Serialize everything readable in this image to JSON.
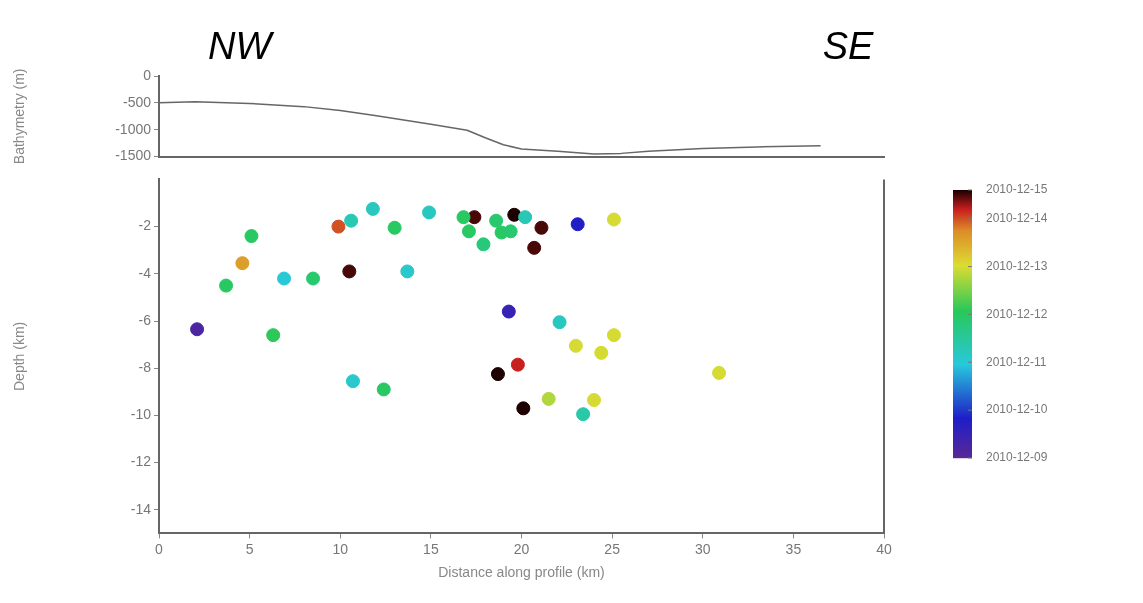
{
  "chart_data": [
    {
      "type": "line",
      "ylabel": "Bathymetry (m)",
      "annotations": [
        "NW",
        "SE"
      ],
      "x": [
        0,
        2,
        5,
        8,
        10,
        12,
        15,
        17,
        18,
        19,
        20,
        22,
        24,
        25.5,
        27,
        30,
        33,
        36.5
      ],
      "values": [
        -500,
        -480,
        -510,
        -570,
        -640,
        -740,
        -900,
        -1010,
        -1150,
        -1280,
        -1360,
        -1400,
        -1450,
        -1440,
        -1400,
        -1350,
        -1320,
        -1300
      ],
      "color": "#666666",
      "xlim": [
        0,
        40
      ],
      "ylim": [
        -1500,
        0
      ],
      "yticks": [
        0,
        -500,
        -1000,
        -1500
      ],
      "tick_labels": "y",
      "marker": "none",
      "grid": false
    },
    {
      "type": "scatter",
      "xlabel": "Distance along profile (km)",
      "ylabel": "Depth (km)",
      "x": [
        2.1,
        3.7,
        4.6,
        5.1,
        6.3,
        6.9,
        8.5,
        9.9,
        10.6,
        10.5,
        10.7,
        11.8,
        12.4,
        13,
        13.7,
        14.9,
        17.4,
        16.8,
        17.1,
        17.9,
        18.6,
        18.9,
        19.6,
        19.4,
        20.2,
        21.1,
        20.7,
        23.1,
        25.1,
        19.3,
        22.1,
        23,
        24.4,
        25.1,
        18.7,
        19.8,
        21.5,
        24,
        23.4,
        20.1,
        30.9
      ],
      "values": [
        -6.35,
        -4.5,
        -3.55,
        -2.4,
        -6.6,
        -4.2,
        -4.2,
        -2,
        -1.75,
        -3.9,
        -8.55,
        -1.25,
        -8.9,
        -2.05,
        -3.9,
        -1.4,
        -1.6,
        -1.6,
        -2.2,
        -2.75,
        -1.75,
        -2.25,
        -1.5,
        -2.2,
        -1.6,
        -2.05,
        -2.9,
        -1.9,
        -1.7,
        -5.6,
        -6.05,
        -7.05,
        -7.35,
        -6.6,
        -8.25,
        -7.85,
        -9.3,
        -9.35,
        -9.95,
        -9.7,
        -8.2
      ],
      "cvalues": [
        9.2,
        12,
        13.6,
        12,
        12.1,
        11,
        11.9,
        14,
        11.3,
        14.5,
        11.1,
        11.2,
        12,
        12,
        11.1,
        11.2,
        14.5,
        12,
        12,
        11.8,
        11.9,
        12,
        14.6,
        11.9,
        11.3,
        14.5,
        14.5,
        9.8,
        13,
        9.5,
        11.2,
        13,
        13,
        13,
        14.6,
        14.2,
        12.8,
        13,
        11.4,
        14.6,
        13
      ],
      "clim": [
        9,
        14.6
      ],
      "cticks": [
        {
          "value": 9,
          "label": "2010-12-09"
        },
        {
          "value": 10,
          "label": "2010-12-10"
        },
        {
          "value": 11,
          "label": "2010-12-11"
        },
        {
          "value": 12,
          "label": "2010-12-12"
        },
        {
          "value": 13,
          "label": "2010-12-13"
        },
        {
          "value": 14,
          "label": "2010-12-14"
        },
        {
          "value": 14.6,
          "label": "2010-12-15"
        }
      ],
      "xlim": [
        0,
        40
      ],
      "ylim": [
        -15,
        0
      ],
      "xticks": [
        0,
        5,
        10,
        15,
        20,
        25,
        30,
        35,
        40
      ],
      "yticks": [
        -2,
        -4,
        -6,
        -8,
        -10,
        -12,
        -14
      ],
      "grid": false
    }
  ]
}
